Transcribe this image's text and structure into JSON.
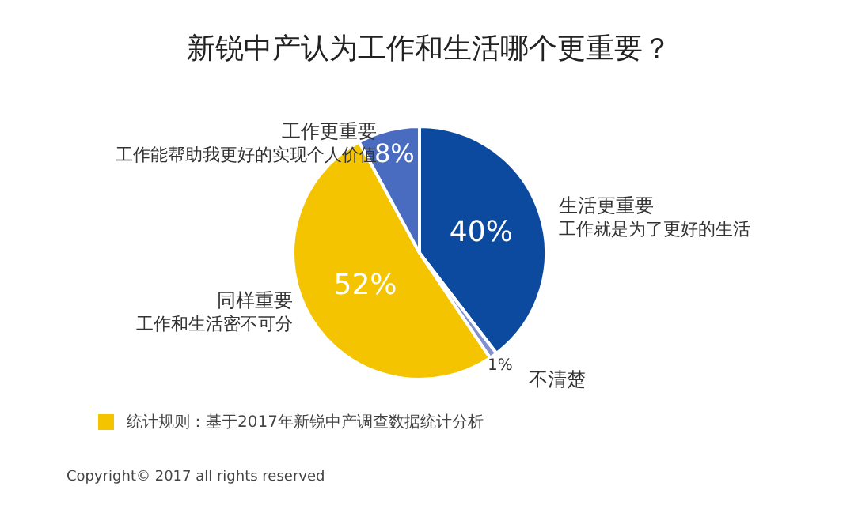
{
  "chart_data": {
    "type": "pie",
    "title": "新锐中产认为工作和生活哪个更重要？",
    "categories": [
      "生活更重要",
      "不清楚",
      "同样重要",
      "工作更重要"
    ],
    "values": [
      40,
      1,
      52,
      8
    ],
    "colors": [
      "#0b4a9e",
      "#7f8fd0",
      "#f5c400",
      "#4a6cc0"
    ],
    "value_labels": [
      "40%",
      "1%",
      "52%",
      "8%"
    ],
    "legend": false,
    "annotations": [
      {
        "text": "工作就是为了更好的生活",
        "x": "生活更重要"
      },
      {
        "text": "工作和生活密不可分",
        "x": "同样重要"
      },
      {
        "text": "工作能帮助我更好的实现个人价值",
        "x": "工作更重要"
      },
      "统计规则：基于2017年新锐中产调查数据统计分析",
      "Copyright© 2017 all rights reserved"
    ]
  }
}
